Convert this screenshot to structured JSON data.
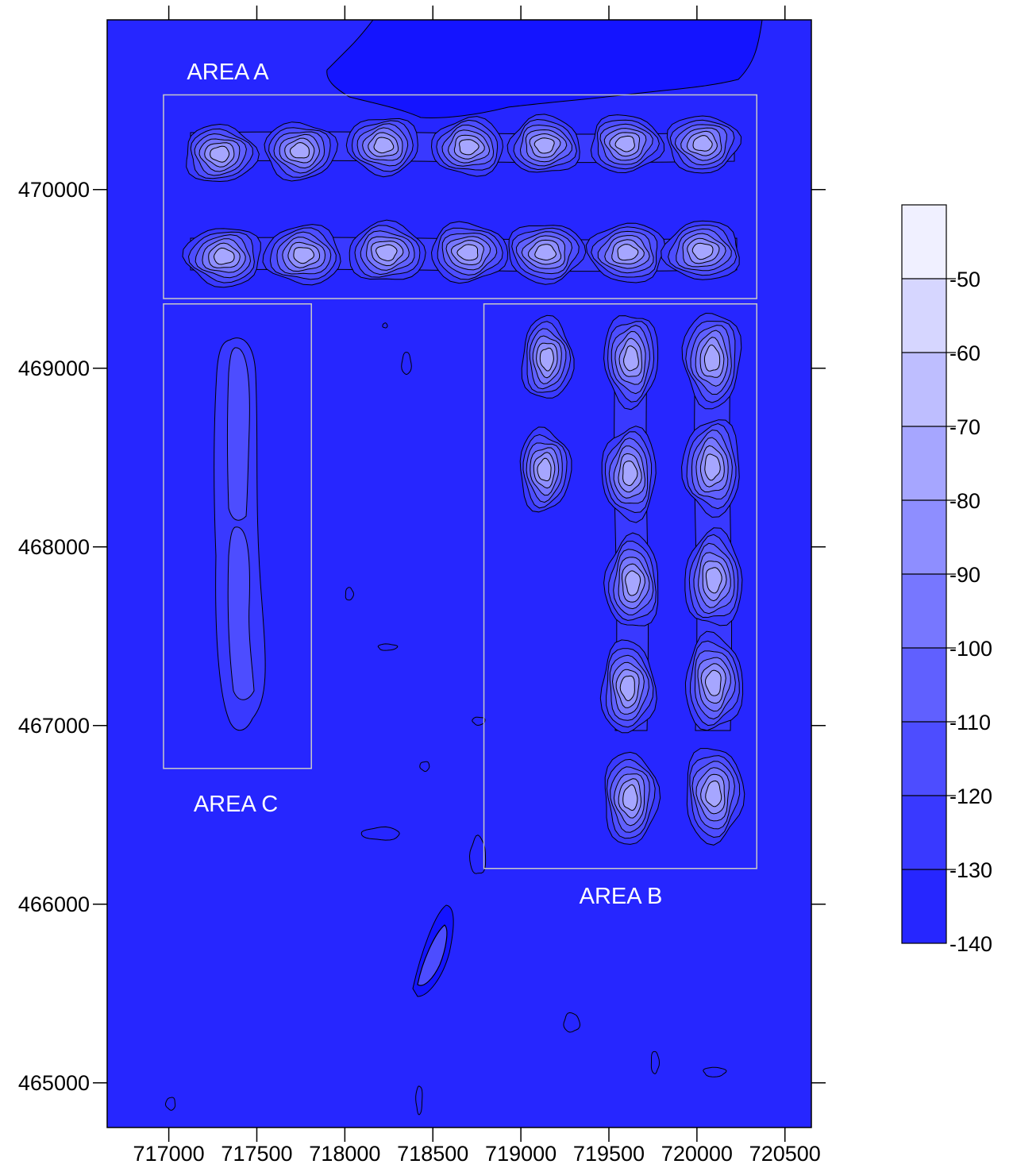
{
  "colors": {
    "background": "#2626ff",
    "deep": "#1414ff",
    "contour_line": "#000000",
    "area_box": "#c8c8c8",
    "levels": [
      "#1414ff",
      "#2626ff",
      "#3939ff",
      "#4d4dff",
      "#6060ff",
      "#7777ff",
      "#8e8eff",
      "#a6a6ff",
      "#bebeff",
      "#d6d6ff",
      "#f0f0ff"
    ]
  },
  "map": {
    "x_ticks": [
      "717000",
      "717500",
      "718000",
      "718500",
      "719000",
      "719500",
      "720000",
      "720500"
    ],
    "y_ticks": [
      "465000",
      "466000",
      "467000",
      "468000",
      "469000",
      "470000"
    ],
    "x_range": [
      716650,
      720650
    ],
    "y_range": [
      464750,
      470950
    ],
    "areas": [
      {
        "label": "AREA A",
        "x0": 716970,
        "x1": 720340,
        "y0": 469390,
        "y1": 470530
      },
      {
        "label": "AREA B",
        "x0": 718790,
        "x1": 720340,
        "y0": 466200,
        "y1": 469360
      },
      {
        "label": "AREA C",
        "x0": 716970,
        "x1": 717810,
        "y0": 466760,
        "y1": 469360
      }
    ]
  },
  "colorbar": {
    "levels": [
      "-50",
      "-60",
      "-70",
      "-80",
      "-90",
      "-100",
      "-110",
      "-120",
      "-130",
      "-140"
    ],
    "range": [
      -140,
      -40
    ]
  }
}
